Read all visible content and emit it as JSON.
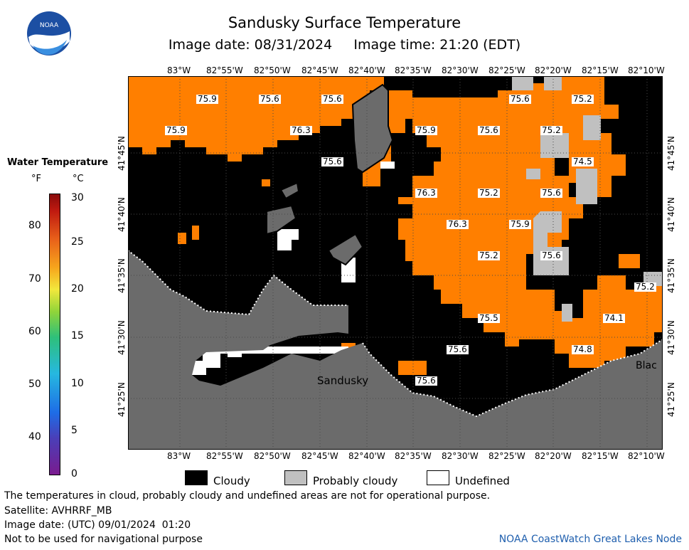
{
  "header": {
    "title": "Sandusky Surface Temperature",
    "image_date_line": "Image date: 08/31/2024     Image time: 21:20 (EDT)"
  },
  "logo": {
    "text": "NOAA",
    "icon": "noaa-logo-icon"
  },
  "legend": {
    "title": "Water Temperature",
    "unit_f": "°F",
    "unit_c": "°C",
    "f_ticks": [
      "80",
      "70",
      "60",
      "50",
      "40"
    ],
    "c_ticks": [
      "30",
      "25",
      "20",
      "15",
      "10",
      "5",
      "0"
    ]
  },
  "map": {
    "lon_labels": [
      "83°W",
      "82°55'W",
      "82°50'W",
      "82°45'W",
      "82°40'W",
      "82°35'W",
      "82°30'W",
      "82°25'W",
      "82°20'W",
      "82°15'W",
      "82°10'W"
    ],
    "lat_labels": [
      "41°45'N",
      "41°40'N",
      "41°35'N",
      "41°30'N",
      "41°25'N"
    ],
    "temperature_labels": [
      "75.9",
      "75.6",
      "75.6",
      "75.6",
      "75.2",
      "75.9",
      "76.3",
      "75.9",
      "75.6",
      "75.2",
      "75.6",
      "74.5",
      "76.3",
      "75.2",
      "75.6",
      "76.3",
      "75.9",
      "75.2",
      "75.6",
      "75.2",
      "75.5",
      "74.1",
      "75.6",
      "74.8",
      "75.6"
    ],
    "place_labels": {
      "sandusky": "Sandusky",
      "edge_town": "Blac"
    },
    "colors": {
      "water": "#ff7f00",
      "cloudy": "#000000",
      "probably_cloudy": "#c0c0c0",
      "undefined": "#ffffff",
      "land": "#6b6b6b"
    }
  },
  "key": {
    "cloudy": "Cloudy",
    "probably_cloudy": "Probably cloudy",
    "undefined": "Undefined"
  },
  "footer": {
    "disclaimer": "The temperatures in cloud, probably cloudy and undefined areas are not for operational purpose.",
    "satellite": "Satellite: AVHRRF_MB",
    "utc_date": "Image date: (UTC) 09/01/2024  01:20",
    "navigation": "Not to be used for navigational purpose",
    "credit": "NOAA CoastWatch Great Lakes Node"
  }
}
